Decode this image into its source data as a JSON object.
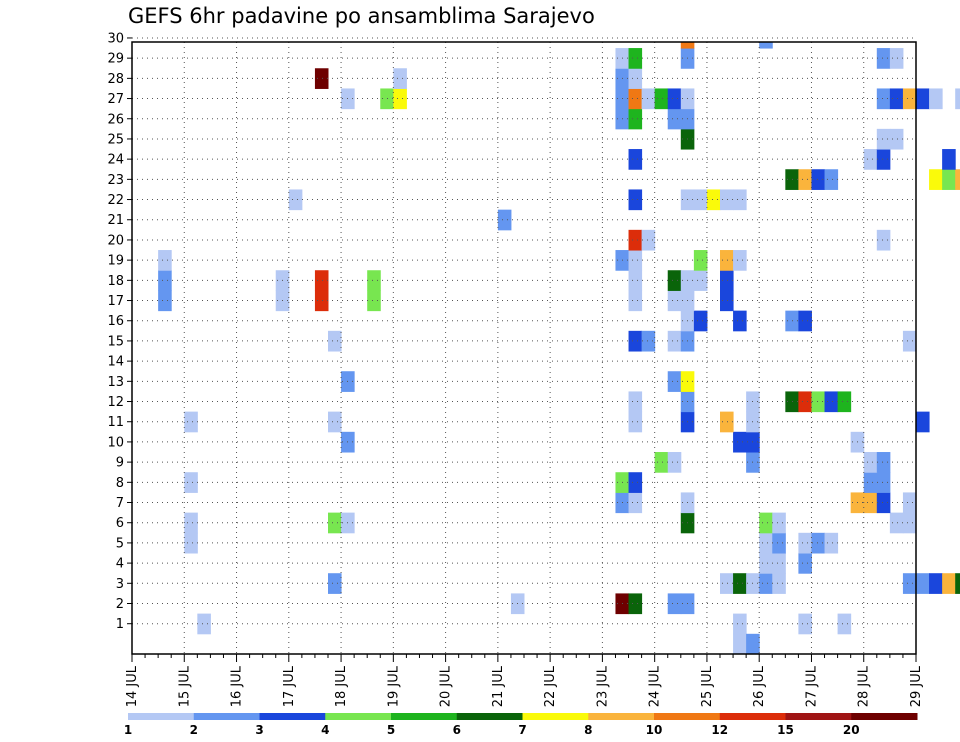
{
  "title": "GEFS 6hr padavine po ansamblima Sarajevo",
  "chart_data": {
    "type": "heatmap",
    "title": "GEFS 6hr padavine po ansamblima Sarajevo",
    "x_tick_labels": [
      "14 JUL",
      "15 JUL",
      "16 JUL",
      "17 JUL",
      "18 JUL",
      "19 JUL",
      "20 JUL",
      "21 JUL",
      "22 JUL",
      "23 JUL",
      "24 JUL",
      "25 JUL",
      "26 JUL",
      "27 JUL",
      "28 JUL",
      "29 JUL"
    ],
    "y_tick_labels": [
      "1",
      "2",
      "3",
      "4",
      "5",
      "6",
      "7",
      "8",
      "9",
      "10",
      "11",
      "12",
      "13",
      "14",
      "15",
      "16",
      "17",
      "18",
      "19",
      "20",
      "21",
      "22",
      "23",
      "24",
      "25",
      "26",
      "27",
      "28",
      "29",
      "30"
    ],
    "x_range": [
      "14 JUL 00",
      "29 JUL 00"
    ],
    "y_range": [
      0,
      30
    ],
    "x_step_hours": 6,
    "grid": true,
    "legend_position": "bottom",
    "colorbar_levels": [
      "1",
      "2",
      "3",
      "4",
      "5",
      "6",
      "7",
      "8",
      "10",
      "12",
      "15",
      "20"
    ],
    "colorbar_colors": [
      "#b4c8f4",
      "#6496f0",
      "#1a46dc",
      "#78e650",
      "#1eb41e",
      "#0a640a",
      "#fafa0a",
      "#fab43c",
      "#f07814",
      "#dc2d0a",
      "#a01414",
      "#6e0000"
    ],
    "cells": [
      {
        "m": 1,
        "t": 5,
        "c": 1
      },
      {
        "m": 1,
        "t": 54,
        "c": 1
      },
      {
        "m": 1,
        "t": 46,
        "c": 1
      },
      {
        "m": 1,
        "t": 51,
        "c": 1
      },
      {
        "m": 1,
        "t": 67,
        "c": 1
      },
      {
        "m": 1,
        "t": 71,
        "c": 1
      },
      {
        "m": 1,
        "t": 75,
        "c": 4
      },
      {
        "m": 2,
        "t": 29,
        "c": 1
      },
      {
        "m": 2,
        "t": 37,
        "c": 12
      },
      {
        "m": 2,
        "t": 38,
        "c": 6
      },
      {
        "m": 2,
        "t": 41,
        "c": 2
      },
      {
        "m": 2,
        "t": 42,
        "c": 2
      },
      {
        "m": 3,
        "t": 15,
        "c": 2
      },
      {
        "m": 3,
        "t": 45,
        "c": 1
      },
      {
        "m": 3,
        "t": 46,
        "c": 6
      },
      {
        "m": 3,
        "t": 47,
        "c": 1
      },
      {
        "m": 3,
        "t": 48,
        "c": 2
      },
      {
        "m": 3,
        "t": 49,
        "c": 1
      },
      {
        "m": 3,
        "t": 59,
        "c": 2
      },
      {
        "m": 3,
        "t": 60,
        "c": 2
      },
      {
        "m": 3,
        "t": 61,
        "c": 3
      },
      {
        "m": 3,
        "t": 62,
        "c": 8
      },
      {
        "m": 3,
        "t": 63,
        "c": 6
      },
      {
        "m": 3,
        "t": 64,
        "c": 1
      },
      {
        "m": 3,
        "t": 66,
        "c": 1
      },
      {
        "m": 3,
        "t": 70,
        "c": 2
      },
      {
        "m": 3,
        "t": 73,
        "c": 2
      },
      {
        "m": 3,
        "t": 74,
        "c": 2
      },
      {
        "m": 4,
        "t": 48,
        "c": 1
      },
      {
        "m": 4,
        "t": 49,
        "c": 1
      },
      {
        "m": 4,
        "t": 51,
        "c": 2
      },
      {
        "m": 5,
        "t": 4,
        "c": 1
      },
      {
        "m": 5,
        "t": 48,
        "c": 1
      },
      {
        "m": 5,
        "t": 49,
        "c": 2
      },
      {
        "m": 5,
        "t": 51,
        "c": 1
      },
      {
        "m": 5,
        "t": 52,
        "c": 2
      },
      {
        "m": 5,
        "t": 53,
        "c": 1
      },
      {
        "m": 6,
        "t": 4,
        "c": 1
      },
      {
        "m": 6,
        "t": 15,
        "c": 4
      },
      {
        "m": 6,
        "t": 16,
        "c": 1
      },
      {
        "m": 6,
        "t": 42,
        "c": 6
      },
      {
        "m": 6,
        "t": 48,
        "c": 4
      },
      {
        "m": 6,
        "t": 49,
        "c": 1
      },
      {
        "m": 6,
        "t": 58,
        "c": 1
      },
      {
        "m": 6,
        "t": 59,
        "c": 1
      },
      {
        "m": 7,
        "t": 37,
        "c": 2
      },
      {
        "m": 7,
        "t": 38,
        "c": 1
      },
      {
        "m": 7,
        "t": 42,
        "c": 1
      },
      {
        "m": 7,
        "t": 55,
        "c": 8
      },
      {
        "m": 7,
        "t": 56,
        "c": 8
      },
      {
        "m": 7,
        "t": 57,
        "c": 3
      },
      {
        "m": 7,
        "t": 59,
        "c": 1
      },
      {
        "m": 8,
        "t": 4,
        "c": 1
      },
      {
        "m": 8,
        "t": 37,
        "c": 4
      },
      {
        "m": 8,
        "t": 38,
        "c": 3
      },
      {
        "m": 8,
        "t": 56,
        "c": 2
      },
      {
        "m": 8,
        "t": 57,
        "c": 2
      },
      {
        "m": 8,
        "t": 71,
        "c": 1
      },
      {
        "m": 9,
        "t": 40,
        "c": 4
      },
      {
        "m": 9,
        "t": 41,
        "c": 1
      },
      {
        "m": 9,
        "t": 47,
        "c": 2
      },
      {
        "m": 9,
        "t": 56,
        "c": 1
      },
      {
        "m": 9,
        "t": 57,
        "c": 2
      },
      {
        "m": 9,
        "t": 67,
        "c": 2
      },
      {
        "m": 9,
        "t": 68,
        "c": 10
      },
      {
        "m": 9,
        "t": 69,
        "c": 6
      },
      {
        "m": 9,
        "t": 70,
        "c": 8
      },
      {
        "m": 10,
        "t": 16,
        "c": 2
      },
      {
        "m": 10,
        "t": 46,
        "c": 3
      },
      {
        "m": 10,
        "t": 47,
        "c": 3
      },
      {
        "m": 10,
        "t": 55,
        "c": 1
      },
      {
        "m": 10,
        "t": 65,
        "c": 1
      },
      {
        "m": 10,
        "t": 68,
        "c": 6
      },
      {
        "m": 10,
        "t": 69,
        "c": 6
      },
      {
        "m": 10,
        "t": 72,
        "c": 1
      },
      {
        "m": 10,
        "t": 73,
        "c": 1
      },
      {
        "m": 11,
        "t": 4,
        "c": 1
      },
      {
        "m": 11,
        "t": 15,
        "c": 1
      },
      {
        "m": 11,
        "t": 38,
        "c": 1
      },
      {
        "m": 11,
        "t": 42,
        "c": 3
      },
      {
        "m": 11,
        "t": 45,
        "c": 8
      },
      {
        "m": 11,
        "t": 47,
        "c": 1
      },
      {
        "m": 11,
        "t": 60,
        "c": 3
      },
      {
        "m": 11,
        "t": 68,
        "c": 6
      },
      {
        "m": 11,
        "t": 69,
        "c": 6
      },
      {
        "m": 11,
        "t": 75,
        "c": 7
      },
      {
        "m": 11,
        "t": 76,
        "c": 3
      },
      {
        "m": 12,
        "t": 38,
        "c": 1
      },
      {
        "m": 12,
        "t": 42,
        "c": 2
      },
      {
        "m": 12,
        "t": 47,
        "c": 1
      },
      {
        "m": 12,
        "t": 50,
        "c": 6
      },
      {
        "m": 12,
        "t": 51,
        "c": 10
      },
      {
        "m": 12,
        "t": 52,
        "c": 4
      },
      {
        "m": 12,
        "t": 53,
        "c": 3
      },
      {
        "m": 12,
        "t": 54,
        "c": 5
      },
      {
        "m": 12,
        "t": 64,
        "c": 1
      },
      {
        "m": 13,
        "t": 16,
        "c": 2
      },
      {
        "m": 13,
        "t": 41,
        "c": 2
      },
      {
        "m": 13,
        "t": 42,
        "c": 7
      },
      {
        "m": 13,
        "t": 70,
        "c": 3
      },
      {
        "m": 14,
        "t": 65,
        "c": 1
      },
      {
        "m": 15,
        "t": 15,
        "c": 1
      },
      {
        "m": 15,
        "t": 38,
        "c": 3
      },
      {
        "m": 15,
        "t": 39,
        "c": 2
      },
      {
        "m": 15,
        "t": 41,
        "c": 1
      },
      {
        "m": 15,
        "t": 42,
        "c": 2
      },
      {
        "m": 15,
        "t": 59,
        "c": 1
      },
      {
        "m": 16,
        "t": 42,
        "c": 1
      },
      {
        "m": 16,
        "t": 43,
        "c": 3
      },
      {
        "m": 16,
        "t": 46,
        "c": 3
      },
      {
        "m": 16,
        "t": 50,
        "c": 2
      },
      {
        "m": 16,
        "t": 51,
        "c": 3
      },
      {
        "m": 16,
        "t": 64,
        "c": 2
      },
      {
        "m": 16,
        "t": 76,
        "c": 2
      },
      {
        "m": 16,
        "t": 77,
        "c": 11
      },
      {
        "m": 17,
        "t": 2,
        "c": 2
      },
      {
        "m": 17,
        "t": 11,
        "c": 1
      },
      {
        "m": 17,
        "t": 14,
        "c": 10
      },
      {
        "m": 17,
        "t": 18,
        "c": 4
      },
      {
        "m": 17,
        "t": 38,
        "c": 1
      },
      {
        "m": 17,
        "t": 41,
        "c": 1
      },
      {
        "m": 17,
        "t": 42,
        "c": 1
      },
      {
        "m": 17,
        "t": 45,
        "c": 3
      },
      {
        "m": 18,
        "t": 2,
        "c": 2
      },
      {
        "m": 18,
        "t": 11,
        "c": 1
      },
      {
        "m": 18,
        "t": 14,
        "c": 10
      },
      {
        "m": 18,
        "t": 18,
        "c": 4
      },
      {
        "m": 18,
        "t": 38,
        "c": 1
      },
      {
        "m": 18,
        "t": 41,
        "c": 6
      },
      {
        "m": 18,
        "t": 42,
        "c": 1
      },
      {
        "m": 18,
        "t": 43,
        "c": 1
      },
      {
        "m": 18,
        "t": 45,
        "c": 3
      },
      {
        "m": 19,
        "t": 2,
        "c": 1
      },
      {
        "m": 19,
        "t": 37,
        "c": 2
      },
      {
        "m": 19,
        "t": 38,
        "c": 1
      },
      {
        "m": 19,
        "t": 43,
        "c": 4
      },
      {
        "m": 19,
        "t": 45,
        "c": 8
      },
      {
        "m": 19,
        "t": 46,
        "c": 1
      },
      {
        "m": 19,
        "t": 67,
        "c": 2
      },
      {
        "m": 19,
        "t": 68,
        "c": 5
      },
      {
        "m": 20,
        "t": 38,
        "c": 10
      },
      {
        "m": 20,
        "t": 39,
        "c": 1
      },
      {
        "m": 20,
        "t": 57,
        "c": 1
      },
      {
        "m": 21,
        "t": 28,
        "c": 2
      },
      {
        "m": 22,
        "t": 12,
        "c": 1
      },
      {
        "m": 22,
        "t": 38,
        "c": 3
      },
      {
        "m": 22,
        "t": 42,
        "c": 1
      },
      {
        "m": 22,
        "t": 43,
        "c": 1
      },
      {
        "m": 22,
        "t": 44,
        "c": 7
      },
      {
        "m": 22,
        "t": 45,
        "c": 1
      },
      {
        "m": 22,
        "t": 46,
        "c": 1
      },
      {
        "m": 22,
        "t": 68,
        "c": 1
      },
      {
        "m": 23,
        "t": 50,
        "c": 6
      },
      {
        "m": 23,
        "t": 51,
        "c": 8
      },
      {
        "m": 23,
        "t": 52,
        "c": 3
      },
      {
        "m": 23,
        "t": 53,
        "c": 2
      },
      {
        "m": 23,
        "t": 61,
        "c": 7
      },
      {
        "m": 23,
        "t": 62,
        "c": 4
      },
      {
        "m": 23,
        "t": 63,
        "c": 8
      },
      {
        "m": 23,
        "t": 67,
        "c": 1
      },
      {
        "m": 23,
        "t": 68,
        "c": 1
      },
      {
        "m": 23,
        "t": 71,
        "c": 1
      },
      {
        "m": 24,
        "t": 38,
        "c": 3
      },
      {
        "m": 24,
        "t": 56,
        "c": 1
      },
      {
        "m": 24,
        "t": 57,
        "c": 3
      },
      {
        "m": 24,
        "t": 62,
        "c": 3
      },
      {
        "m": 24,
        "t": 64,
        "c": 2
      },
      {
        "m": 24,
        "t": 65,
        "c": 1
      },
      {
        "m": 25,
        "t": 42,
        "c": 6
      },
      {
        "m": 25,
        "t": 57,
        "c": 1
      },
      {
        "m": 25,
        "t": 58,
        "c": 1
      },
      {
        "m": 26,
        "t": 37,
        "c": 2
      },
      {
        "m": 26,
        "t": 38,
        "c": 5
      },
      {
        "m": 26,
        "t": 41,
        "c": 2
      },
      {
        "m": 26,
        "t": 42,
        "c": 2
      },
      {
        "m": 26,
        "t": 67,
        "c": 5
      },
      {
        "m": 26,
        "t": 68,
        "c": 10
      },
      {
        "m": 26,
        "t": 69,
        "c": 4
      },
      {
        "m": 26,
        "t": 71,
        "c": 2
      },
      {
        "m": 26,
        "t": 72,
        "c": 5
      },
      {
        "m": 26,
        "t": 73,
        "c": 5
      },
      {
        "m": 26,
        "t": 74,
        "c": 5
      },
      {
        "m": 26,
        "t": 75,
        "c": 2
      },
      {
        "m": 27,
        "t": 16,
        "c": 1
      },
      {
        "m": 27,
        "t": 19,
        "c": 4
      },
      {
        "m": 27,
        "t": 20,
        "c": 7
      },
      {
        "m": 27,
        "t": 37,
        "c": 2
      },
      {
        "m": 27,
        "t": 38,
        "c": 9
      },
      {
        "m": 27,
        "t": 39,
        "c": 1
      },
      {
        "m": 27,
        "t": 40,
        "c": 5
      },
      {
        "m": 27,
        "t": 41,
        "c": 3
      },
      {
        "m": 27,
        "t": 42,
        "c": 1
      },
      {
        "m": 27,
        "t": 57,
        "c": 2
      },
      {
        "m": 27,
        "t": 58,
        "c": 3
      },
      {
        "m": 27,
        "t": 59,
        "c": 8
      },
      {
        "m": 27,
        "t": 60,
        "c": 3
      },
      {
        "m": 27,
        "t": 61,
        "c": 1
      },
      {
        "m": 27,
        "t": 63,
        "c": 1
      },
      {
        "m": 27,
        "t": 64,
        "c": 3
      },
      {
        "m": 27,
        "t": 67,
        "c": 8
      },
      {
        "m": 27,
        "t": 68,
        "c": 1
      },
      {
        "m": 27,
        "t": 69,
        "c": 6
      },
      {
        "m": 27,
        "t": 70,
        "c": 2
      },
      {
        "m": 27,
        "t": 73,
        "c": 1
      },
      {
        "m": 27,
        "t": 75,
        "c": 3
      },
      {
        "m": 27,
        "t": 76,
        "c": 5
      },
      {
        "m": 27,
        "t": 77,
        "c": 7
      },
      {
        "m": 28,
        "t": 14,
        "c": 12
      },
      {
        "m": 28,
        "t": 20,
        "c": 1
      },
      {
        "m": 28,
        "t": 37,
        "c": 2
      },
      {
        "m": 28,
        "t": 38,
        "c": 1
      },
      {
        "m": 29,
        "t": 37,
        "c": 1
      },
      {
        "m": 29,
        "t": 38,
        "c": 5
      },
      {
        "m": 29,
        "t": 42,
        "c": 2
      },
      {
        "m": 29,
        "t": 57,
        "c": 2
      },
      {
        "m": 29,
        "t": 58,
        "c": 1
      },
      {
        "m": 30,
        "t": 42,
        "c": 9
      },
      {
        "m": 30,
        "t": 48,
        "c": 2
      },
      {
        "m": 30,
        "t": 74,
        "c": 2
      },
      {
        "m": 30,
        "t": 75,
        "c": 6
      },
      {
        "m": 30,
        "t": 76,
        "c": 1
      },
      {
        "m": 30,
        "t": 77,
        "c": 5
      },
      {
        "m": 0,
        "t": 46,
        "c": 1
      },
      {
        "m": 0,
        "t": 47,
        "c": 2
      },
      {
        "m": 0,
        "t": 67,
        "c": 2
      },
      {
        "m": 0,
        "t": 68,
        "c": 4
      },
      {
        "m": 0,
        "t": 75,
        "c": 1
      },
      {
        "m": 0,
        "t": 76,
        "c": 2
      }
    ]
  }
}
